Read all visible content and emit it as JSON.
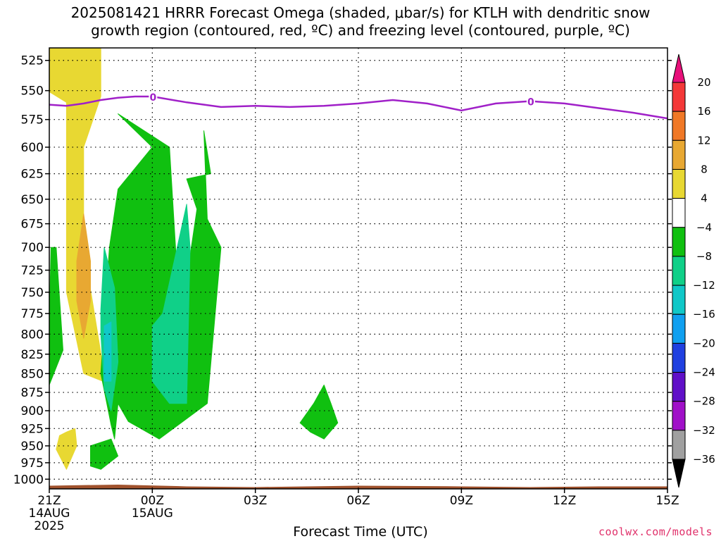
{
  "title": {
    "line1": "2025081421 HRRR Forecast Omega (shaded, μbar/s) for KTLH with dendritic snow",
    "line2": "growth region (contoured, red, ºC) and freezing level (contoured, purple, ºC)"
  },
  "credit": "coolwx.com/models",
  "chart_data": {
    "type": "heatmap",
    "xlabel": "Forecast Time (UTC)",
    "x_ticks": [
      {
        "label": "21Z",
        "date": "14AUG",
        "year": "2025",
        "hour": 0
      },
      {
        "label": "00Z",
        "date": "15AUG",
        "year": "",
        "hour": 3
      },
      {
        "label": "03Z",
        "date": "",
        "year": "",
        "hour": 6
      },
      {
        "label": "06Z",
        "date": "",
        "year": "",
        "hour": 9
      },
      {
        "label": "09Z",
        "date": "",
        "year": "",
        "hour": 12
      },
      {
        "label": "12Z",
        "date": "",
        "year": "",
        "hour": 15
      },
      {
        "label": "15Z",
        "date": "",
        "year": "",
        "hour": 18
      }
    ],
    "xlim_hours": [
      0,
      18
    ],
    "y_ticks": [
      525,
      550,
      575,
      600,
      625,
      650,
      675,
      700,
      725,
      750,
      775,
      800,
      825,
      850,
      875,
      900,
      925,
      950,
      975,
      1000
    ],
    "ylim_hpa": [
      515,
      1015
    ],
    "y_scale": "log-pressure",
    "grid": true,
    "colorbar": {
      "ticks": [
        "20",
        "16",
        "12",
        "8",
        "4",
        "−4",
        "−8",
        "−12",
        "−16",
        "−20",
        "−24",
        "−28",
        "−32",
        "−36"
      ],
      "colors": [
        "#e8107a",
        "#f43838",
        "#f07826",
        "#e8a832",
        "#e8d832",
        "#ffffff",
        "#10c010",
        "#10d088",
        "#10c8c8",
        "#10a0f0",
        "#2040e0",
        "#6010c8",
        "#a010c8",
        "#a0a0a0",
        "#000000"
      ]
    },
    "freezing_level": {
      "label": "0",
      "color": "#a020c8",
      "points": [
        [
          0.0,
          562
        ],
        [
          0.5,
          563
        ],
        [
          1,
          561
        ],
        [
          1.5,
          558
        ],
        [
          2,
          556
        ],
        [
          2.5,
          555
        ],
        [
          3,
          555
        ],
        [
          4,
          560
        ],
        [
          5,
          564
        ],
        [
          6,
          563
        ],
        [
          7,
          564
        ],
        [
          8,
          563
        ],
        [
          9,
          561
        ],
        [
          10,
          558
        ],
        [
          11,
          561
        ],
        [
          12,
          567
        ],
        [
          13,
          561
        ],
        [
          14,
          559
        ],
        [
          15,
          561
        ],
        [
          16,
          565
        ],
        [
          17,
          569
        ],
        [
          18,
          574
        ]
      ]
    },
    "shaded_regions": [
      {
        "value_range": "4 to 8",
        "color": "#e8d832",
        "points": [
          [
            -1.2,
            515
          ],
          [
            1.5,
            515
          ],
          [
            1.5,
            555
          ],
          [
            1.0,
            600
          ],
          [
            1.0,
            700
          ],
          [
            1.6,
            850
          ],
          [
            2.1,
            870
          ],
          [
            1.0,
            850
          ],
          [
            0.5,
            750
          ],
          [
            0.5,
            560
          ],
          [
            -1.2,
            530
          ]
        ]
      },
      {
        "value_range": "4 to 8",
        "color": "#e8d832",
        "points": [
          [
            0.5,
            930
          ],
          [
            0.75,
            925
          ],
          [
            0.8,
            950
          ],
          [
            0.5,
            985
          ],
          [
            0.2,
            955
          ],
          [
            0.3,
            935
          ]
        ]
      },
      {
        "value_range": "8 to 12",
        "color": "#e8a832",
        "points": [
          [
            1.0,
            665
          ],
          [
            1.2,
            715
          ],
          [
            1.2,
            760
          ],
          [
            1.0,
            805
          ],
          [
            0.8,
            760
          ],
          [
            0.8,
            715
          ]
        ]
      },
      {
        "value_range": "-4 to -8",
        "color": "#10c010",
        "points": [
          [
            1.2,
            950
          ],
          [
            1.8,
            940
          ],
          [
            2.0,
            965
          ],
          [
            1.5,
            985
          ],
          [
            1.2,
            980
          ]
        ]
      },
      {
        "value_range": "-4 to -8",
        "color": "#10c010",
        "points": [
          [
            0.0,
            790
          ],
          [
            0.05,
            700
          ],
          [
            0.2,
            700
          ],
          [
            0.4,
            820
          ],
          [
            0.0,
            865
          ]
        ]
      },
      {
        "value_range": "-4 to -8",
        "color": "#10c010",
        "points": [
          [
            1.5,
            850
          ],
          [
            1.75,
            700
          ],
          [
            2.0,
            640
          ],
          [
            3.0,
            600
          ],
          [
            2.0,
            570
          ],
          [
            3.5,
            600
          ],
          [
            3.7,
            715
          ],
          [
            4.0,
            735
          ],
          [
            4.3,
            660
          ],
          [
            4.0,
            630
          ],
          [
            4.7,
            625
          ],
          [
            4.5,
            585
          ],
          [
            4.6,
            670
          ],
          [
            5.0,
            700
          ],
          [
            4.6,
            890
          ],
          [
            3.2,
            940
          ],
          [
            2.3,
            915
          ],
          [
            2.0,
            890
          ],
          [
            1.9,
            940
          ],
          [
            1.8,
            920
          ],
          [
            1.5,
            850
          ]
        ]
      },
      {
        "value_range": "-8 to -12",
        "color": "#10d088",
        "points": [
          [
            1.5,
            770
          ],
          [
            1.6,
            700
          ],
          [
            1.9,
            745
          ],
          [
            2.0,
            835
          ],
          [
            1.8,
            900
          ],
          [
            1.6,
            870
          ],
          [
            1.5,
            800
          ]
        ]
      },
      {
        "value_range": "-8 to -12",
        "color": "#10d088",
        "points": [
          [
            3.0,
            790
          ],
          [
            3.3,
            775
          ],
          [
            4.0,
            655
          ],
          [
            4.1,
            700
          ],
          [
            4.0,
            890
          ],
          [
            3.5,
            890
          ],
          [
            3.0,
            860
          ]
        ]
      },
      {
        "value_range": "-12 to -16",
        "color": "#10c8c8",
        "points": [
          [
            1.6,
            790
          ],
          [
            1.8,
            785
          ],
          [
            1.8,
            860
          ],
          [
            1.6,
            860
          ]
        ]
      },
      {
        "value_range": "-4 to -8",
        "color": "#10c010",
        "points": [
          [
            7.3,
            917
          ],
          [
            7.7,
            890
          ],
          [
            8.0,
            865
          ],
          [
            8.2,
            890
          ],
          [
            8.4,
            917
          ],
          [
            8.0,
            940
          ],
          [
            7.6,
            930
          ]
        ]
      }
    ],
    "terrain": {
      "color": "#a0522d",
      "surface_hpa": 1010
    }
  }
}
